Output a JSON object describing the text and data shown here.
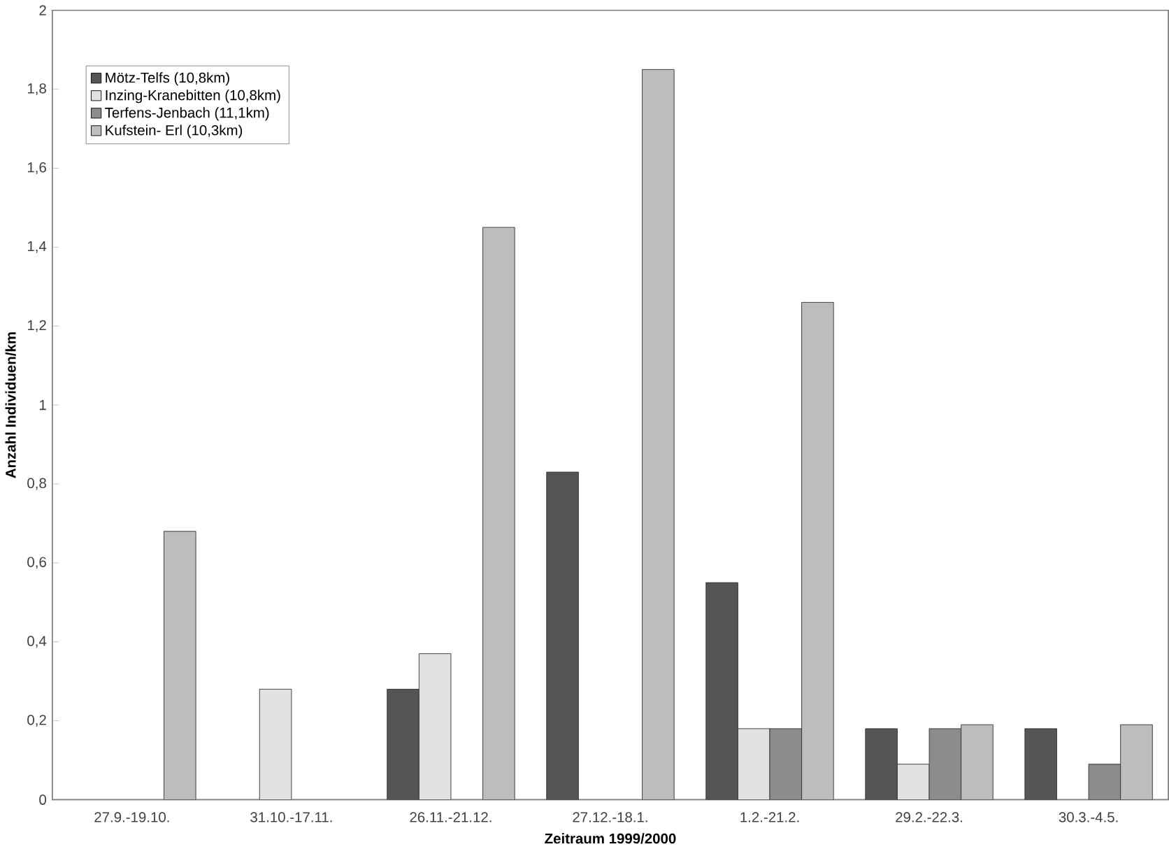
{
  "chart_data": {
    "type": "bar",
    "xlabel": "Zeitraum 1999/2000",
    "ylabel": "Anzahl Individuen/km",
    "categories": [
      "27.9.-19.10.",
      "31.10.-17.11.",
      "26.11.-21.12.",
      "27.12.-18.1.",
      "1.2.-21.2.",
      "29.2.-22.3.",
      "30.3.-4.5."
    ],
    "series": [
      {
        "name": "Mötz-Telfs (10,8km)",
        "color": "#555555",
        "values": [
          null,
          null,
          0.28,
          0.83,
          0.55,
          0.18,
          0.18
        ]
      },
      {
        "name": "Inzing-Kranebitten (10,8km)",
        "color": "#e2e2e2",
        "values": [
          null,
          0.28,
          0.37,
          null,
          0.18,
          0.09,
          null
        ]
      },
      {
        "name": "Terfens-Jenbach (11,1km)",
        "color": "#8c8c8c",
        "values": [
          null,
          null,
          null,
          null,
          0.18,
          0.18,
          0.09
        ]
      },
      {
        "name": "Kufstein- Erl (10,3km)",
        "color": "#bdbdbd",
        "values": [
          0.68,
          null,
          1.45,
          1.85,
          1.26,
          0.19,
          0.19
        ]
      }
    ],
    "ylim": [
      0,
      2
    ],
    "yticks": [
      0,
      {
        "value": 0.2,
        "label": "0,2"
      },
      {
        "value": 0.4,
        "label": "0,4"
      },
      {
        "value": 0.6,
        "label": "0,6"
      },
      {
        "value": 0.8,
        "label": "0,8"
      },
      1,
      {
        "value": 1.2,
        "label": "1,2"
      },
      {
        "value": 1.4,
        "label": "1,4"
      },
      {
        "value": 1.6,
        "label": "1,6"
      },
      {
        "value": 1.8,
        "label": "1,8"
      },
      2
    ],
    "grid": false,
    "legend": "top left"
  }
}
